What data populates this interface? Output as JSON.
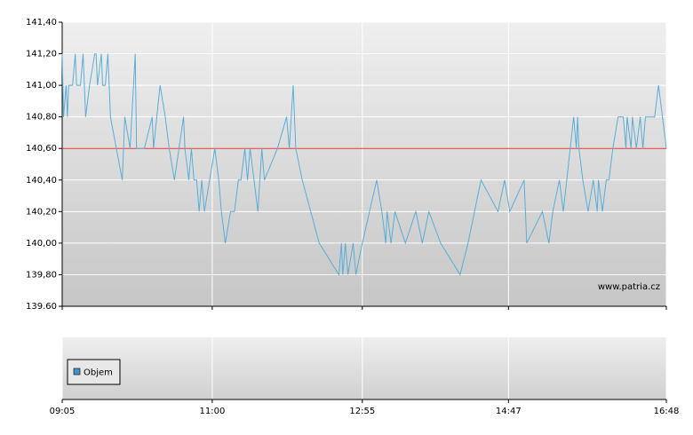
{
  "chart_data": {
    "type": "line",
    "x": [
      545,
      546,
      548,
      549,
      550,
      553,
      555,
      556,
      559,
      561,
      563,
      566,
      570,
      571,
      572,
      575,
      576,
      578,
      580,
      581,
      582,
      591,
      593,
      597,
      601,
      602,
      608,
      614,
      615,
      620,
      624,
      627,
      631,
      638,
      639,
      642,
      644,
      646,
      648,
      650,
      652,
      654,
      662,
      665,
      667,
      670,
      674,
      677,
      680,
      682,
      685,
      687,
      689,
      695,
      698,
      700,
      710,
      717,
      719,
      722,
      724,
      729,
      742,
      757,
      759,
      760,
      762,
      764,
      768,
      770,
      775,
      786,
      790,
      793,
      794,
      797,
      800,
      808,
      816,
      821,
      826,
      835,
      850,
      856,
      866,
      879,
      884,
      888,
      899,
      901,
      913,
      918,
      921,
      926,
      929,
      937,
      939,
      940,
      941,
      944,
      948,
      952,
      955,
      956,
      959,
      962,
      964,
      967,
      971,
      975,
      977,
      978,
      981,
      982,
      985,
      988,
      990,
      992,
      999,
      1002,
      1005,
      1008
    ],
    "series": [
      {
        "color": "#5aaed8",
        "values": [
          141.2,
          140.8,
          141.0,
          140.8,
          141.0,
          141.0,
          141.2,
          141.0,
          141.0,
          141.2,
          140.8,
          141.0,
          141.2,
          141.2,
          141.0,
          141.2,
          141.0,
          141.0,
          141.2,
          141.0,
          140.8,
          140.4,
          140.8,
          140.6,
          141.2,
          140.6,
          140.6,
          140.8,
          140.6,
          141.0,
          140.8,
          140.6,
          140.4,
          140.8,
          140.6,
          140.4,
          140.6,
          140.4,
          140.4,
          140.2,
          140.4,
          140.2,
          140.6,
          140.4,
          140.2,
          140.0,
          140.2,
          140.2,
          140.4,
          140.4,
          140.6,
          140.4,
          140.6,
          140.2,
          140.6,
          140.4,
          140.6,
          140.8,
          140.6,
          141.0,
          140.6,
          140.4,
          140.0,
          139.8,
          140.0,
          139.8,
          140.0,
          139.8,
          140.0,
          139.8,
          140.0,
          140.4,
          140.2,
          140.0,
          140.2,
          140.0,
          140.2,
          140.0,
          140.2,
          140.0,
          140.2,
          140.0,
          139.8,
          140.0,
          140.4,
          140.2,
          140.4,
          140.2,
          140.4,
          140.0,
          140.2,
          140.0,
          140.2,
          140.4,
          140.2,
          140.8,
          140.6,
          140.8,
          140.6,
          140.4,
          140.2,
          140.4,
          140.2,
          140.4,
          140.2,
          140.4,
          140.4,
          140.6,
          140.8,
          140.8,
          140.6,
          140.8,
          140.6,
          140.8,
          140.6,
          140.8,
          140.6,
          140.8,
          140.8,
          141.0,
          140.8,
          140.6
        ]
      }
    ],
    "reference_line": {
      "value": 140.6,
      "color": "#e03030"
    },
    "xlim": [
      545,
      1008
    ],
    "xticks": [
      {
        "value": 545,
        "label": "09:05"
      },
      {
        "value": 660,
        "label": "11:00"
      },
      {
        "value": 775,
        "label": "12:55"
      },
      {
        "value": 887,
        "label": "14:47"
      },
      {
        "value": 1008,
        "label": "16:48"
      }
    ],
    "ylim": [
      139.6,
      141.4
    ],
    "yticks": [
      {
        "value": 139.6,
        "label": "139.60"
      },
      {
        "value": 139.8,
        "label": "139,80"
      },
      {
        "value": 140.0,
        "label": "140,00"
      },
      {
        "value": 140.2,
        "label": "140,20"
      },
      {
        "value": 140.4,
        "label": "140,40"
      },
      {
        "value": 140.6,
        "label": "140,60"
      },
      {
        "value": 140.8,
        "label": "140,80"
      },
      {
        "value": 141.0,
        "label": "141,00"
      },
      {
        "value": 141.2,
        "label": "141,20"
      },
      {
        "value": 141.4,
        "label": "141,40"
      }
    ],
    "grid": true,
    "watermark": "www.patria.cz",
    "legend": {
      "label": "Objem",
      "color": "#4a90c0"
    }
  }
}
